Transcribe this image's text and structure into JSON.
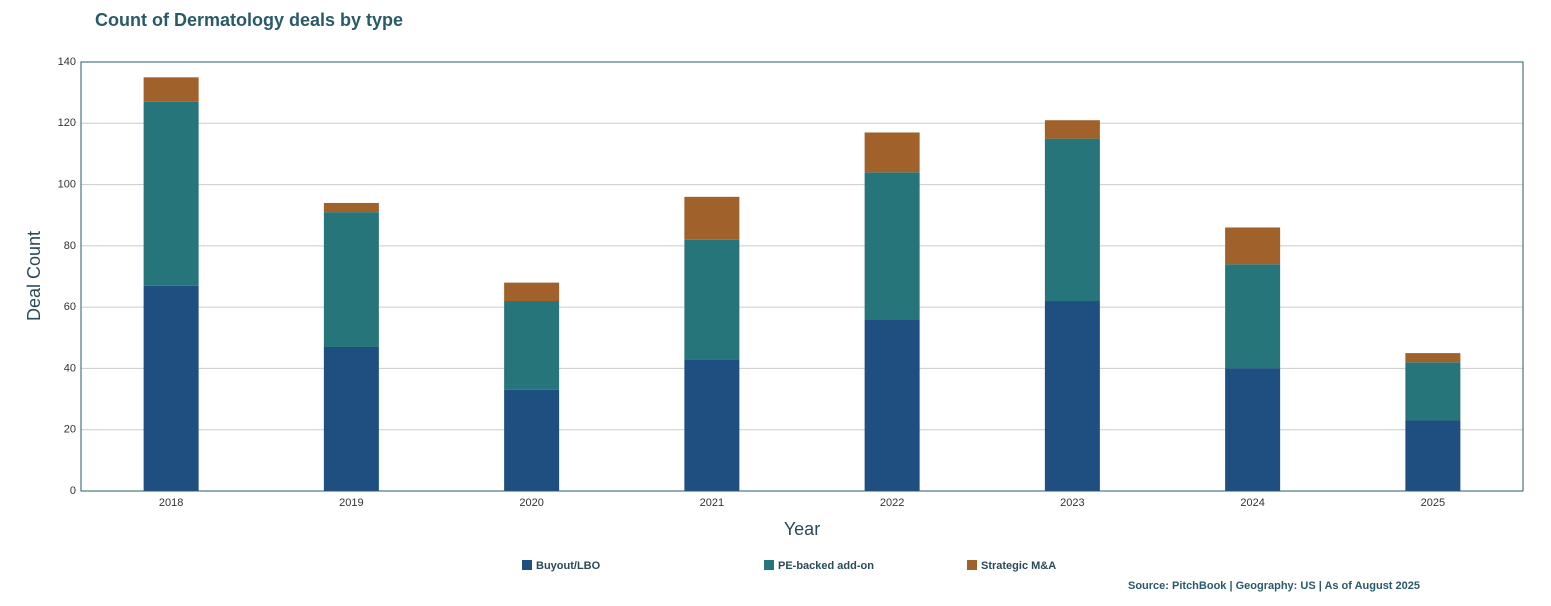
{
  "chart_data": {
    "type": "stacked-bar",
    "title": "Count of Dermatology deals by type",
    "x_label": "Year",
    "y_label": "Deal Count",
    "categories": [
      "2018",
      "2019",
      "2020",
      "2021",
      "2022",
      "2023",
      "2024",
      "2025"
    ],
    "series": [
      {
        "name": "Buyout/LBO",
        "color": "#1f4e80",
        "values": [
          67,
          47,
          33,
          43,
          56,
          62,
          40,
          23
        ]
      },
      {
        "name": "PE-backed add-on",
        "color": "#26757a",
        "values": [
          60,
          44,
          29,
          39,
          48,
          53,
          34,
          19
        ]
      },
      {
        "name": "Strategic M&A",
        "color": "#a0622a",
        "values": [
          8,
          3,
          6,
          14,
          13,
          6,
          12,
          3
        ]
      }
    ],
    "ylim": [
      0,
      140
    ],
    "yticks": [
      0,
      20,
      40,
      60,
      80,
      100,
      120,
      140
    ],
    "grid": true,
    "source": "Source: PitchBook | Geography: US | As of August 2025"
  }
}
